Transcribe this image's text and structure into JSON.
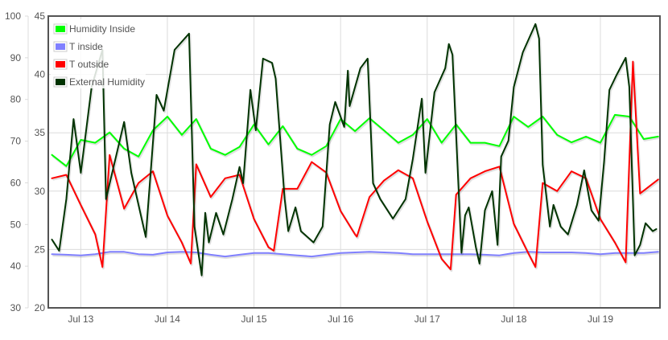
{
  "chart_data": {
    "type": "line",
    "title": "",
    "xlabel": "",
    "ylabel": "",
    "grid": true,
    "legend_position": "top-left",
    "x_range": [
      "07-12 15:00",
      "07-19 16:30"
    ],
    "x_ticks": [
      {
        "label": "Jul 13",
        "at": "07-13 00:00"
      },
      {
        "label": "Jul 14",
        "at": "07-14 00:00"
      },
      {
        "label": "Jul 15",
        "at": "07-15 00:00"
      },
      {
        "label": "Jul 16",
        "at": "07-16 00:00"
      },
      {
        "label": "Jul 17",
        "at": "07-17 00:00"
      },
      {
        "label": "Jul 18",
        "at": "07-18 00:00"
      },
      {
        "label": "Jul 19",
        "at": "07-19 00:00"
      }
    ],
    "y_axes": {
      "humidity": {
        "range": [
          30,
          100
        ],
        "ticks": [
          "30",
          "40",
          "50",
          "60",
          "70",
          "80",
          "90",
          "100"
        ],
        "position": "outer-left"
      },
      "temperature": {
        "range": [
          20,
          45
        ],
        "ticks": [
          "20",
          "25",
          "30",
          "35",
          "40",
          "45"
        ],
        "position": "inner-left"
      }
    },
    "series": [
      {
        "name": "Humidity Inside",
        "color": "#00ff00",
        "axis": "humidity",
        "points": [
          [
            "07-12 16:00",
            66.7
          ],
          [
            "07-12 20:00",
            64.0
          ],
          [
            "07-13 00:00",
            70.3
          ],
          [
            "07-13 04:00",
            69.6
          ],
          [
            "07-13 08:00",
            72.1
          ],
          [
            "07-13 12:00",
            68.2
          ],
          [
            "07-13 16:00",
            66.3
          ],
          [
            "07-13 20:00",
            72.6
          ],
          [
            "07-14 00:00",
            75.9
          ],
          [
            "07-14 04:00",
            71.5
          ],
          [
            "07-14 08:00",
            75.3
          ],
          [
            "07-14 12:00",
            68.2
          ],
          [
            "07-14 16:00",
            66.7
          ],
          [
            "07-14 20:00",
            68.6
          ],
          [
            "07-15 00:00",
            74.0
          ],
          [
            "07-15 04:00",
            69.2
          ],
          [
            "07-15 08:00",
            73.6
          ],
          [
            "07-15 12:00",
            68.2
          ],
          [
            "07-15 16:00",
            66.7
          ],
          [
            "07-15 20:00",
            68.8
          ],
          [
            "07-16 00:00",
            75.3
          ],
          [
            "07-16 04:00",
            72.4
          ],
          [
            "07-16 08:00",
            75.5
          ],
          [
            "07-16 12:00",
            72.6
          ],
          [
            "07-16 16:00",
            69.6
          ],
          [
            "07-16 20:00",
            71.5
          ],
          [
            "07-17 00:00",
            75.3
          ],
          [
            "07-17 04:00",
            69.6
          ],
          [
            "07-17 08:00",
            74.0
          ],
          [
            "07-17 12:00",
            69.6
          ],
          [
            "07-17 16:00",
            69.6
          ],
          [
            "07-17 20:00",
            68.8
          ],
          [
            "07-18 00:00",
            75.9
          ],
          [
            "07-18 04:00",
            73.4
          ],
          [
            "07-18 08:00",
            75.9
          ],
          [
            "07-18 12:00",
            71.5
          ],
          [
            "07-18 16:00",
            69.7
          ],
          [
            "07-18 20:00",
            71.1
          ],
          [
            "07-19 00:00",
            69.6
          ],
          [
            "07-19 04:00",
            76.3
          ],
          [
            "07-19 08:00",
            75.9
          ],
          [
            "07-19 12:00",
            70.5
          ],
          [
            "07-19 16:00",
            71.1
          ]
        ]
      },
      {
        "name": "T inside",
        "color": "#8080ff",
        "axis": "temperature",
        "points": [
          [
            "07-12 16:00",
            24.6
          ],
          [
            "07-12 20:00",
            24.55
          ],
          [
            "07-13 00:00",
            24.5
          ],
          [
            "07-13 04:00",
            24.6
          ],
          [
            "07-13 08:00",
            24.8
          ],
          [
            "07-13 12:00",
            24.8
          ],
          [
            "07-13 16:00",
            24.6
          ],
          [
            "07-13 20:00",
            24.55
          ],
          [
            "07-14 00:00",
            24.75
          ],
          [
            "07-14 04:00",
            24.8
          ],
          [
            "07-14 08:00",
            24.75
          ],
          [
            "07-14 12:00",
            24.55
          ],
          [
            "07-14 16:00",
            24.4
          ],
          [
            "07-14 20:00",
            24.55
          ],
          [
            "07-15 00:00",
            24.7
          ],
          [
            "07-15 04:00",
            24.7
          ],
          [
            "07-15 08:00",
            24.6
          ],
          [
            "07-15 12:00",
            24.5
          ],
          [
            "07-15 16:00",
            24.4
          ],
          [
            "07-15 20:00",
            24.55
          ],
          [
            "07-16 00:00",
            24.7
          ],
          [
            "07-16 04:00",
            24.75
          ],
          [
            "07-16 08:00",
            24.8
          ],
          [
            "07-16 12:00",
            24.75
          ],
          [
            "07-16 16:00",
            24.7
          ],
          [
            "07-16 20:00",
            24.6
          ],
          [
            "07-17 00:00",
            24.6
          ],
          [
            "07-17 04:00",
            24.6
          ],
          [
            "07-17 08:00",
            24.6
          ],
          [
            "07-17 12:00",
            24.6
          ],
          [
            "07-17 16:00",
            24.55
          ],
          [
            "07-17 20:00",
            24.5
          ],
          [
            "07-18 00:00",
            24.7
          ],
          [
            "07-18 04:00",
            24.8
          ],
          [
            "07-18 08:00",
            24.75
          ],
          [
            "07-18 12:00",
            24.75
          ],
          [
            "07-18 16:00",
            24.75
          ],
          [
            "07-18 20:00",
            24.7
          ],
          [
            "07-19 00:00",
            24.6
          ],
          [
            "07-19 04:00",
            24.7
          ],
          [
            "07-19 08:00",
            24.7
          ],
          [
            "07-19 12:00",
            24.7
          ],
          [
            "07-19 16:00",
            24.8
          ]
        ]
      },
      {
        "name": "T outside",
        "color": "#ff0000",
        "axis": "temperature",
        "points": [
          [
            "07-12 16:00",
            31.1
          ],
          [
            "07-12 20:00",
            31.4
          ],
          [
            "07-13 00:00",
            28.8
          ],
          [
            "07-13 04:00",
            26.3
          ],
          [
            "07-13 06:00",
            23.5
          ],
          [
            "07-13 08:00",
            33.1
          ],
          [
            "07-13 12:00",
            28.5
          ],
          [
            "07-13 16:00",
            30.7
          ],
          [
            "07-13 20:00",
            31.7
          ],
          [
            "07-14 00:00",
            27.9
          ],
          [
            "07-14 04:00",
            25.6
          ],
          [
            "07-14 06:30",
            23.8
          ],
          [
            "07-14 08:00",
            32.3
          ],
          [
            "07-14 12:00",
            29.5
          ],
          [
            "07-14 16:00",
            31.1
          ],
          [
            "07-14 20:00",
            31.4
          ],
          [
            "07-15 00:00",
            27.6
          ],
          [
            "07-15 04:00",
            25.2
          ],
          [
            "07-15 05:30",
            24.9
          ],
          [
            "07-15 08:00",
            30.2
          ],
          [
            "07-15 12:00",
            30.2
          ],
          [
            "07-15 16:00",
            32.5
          ],
          [
            "07-15 20:00",
            31.6
          ],
          [
            "07-16 00:00",
            28.3
          ],
          [
            "07-16 04:00",
            26.3
          ],
          [
            "07-16 04:30",
            26.1
          ],
          [
            "07-16 08:00",
            29.5
          ],
          [
            "07-16 12:00",
            30.9
          ],
          [
            "07-16 16:00",
            31.8
          ],
          [
            "07-16 20:00",
            31.1
          ],
          [
            "07-17 00:00",
            27.4
          ],
          [
            "07-17 04:00",
            24.2
          ],
          [
            "07-17 06:30",
            23.3
          ],
          [
            "07-17 08:00",
            29.7
          ],
          [
            "07-17 12:00",
            31.1
          ],
          [
            "07-17 16:00",
            31.7
          ],
          [
            "07-17 20:00",
            32.1
          ],
          [
            "07-18 00:00",
            27.2
          ],
          [
            "07-18 04:00",
            24.7
          ],
          [
            "07-18 06:00",
            23.5
          ],
          [
            "07-18 08:00",
            30.7
          ],
          [
            "07-18 12:00",
            30.0
          ],
          [
            "07-18 16:00",
            31.7
          ],
          [
            "07-18 20:00",
            31.1
          ],
          [
            "07-19 00:00",
            27.6
          ],
          [
            "07-19 04:00",
            25.6
          ],
          [
            "07-19 07:00",
            23.9
          ],
          [
            "07-19 09:00",
            41.1
          ],
          [
            "07-19 11:00",
            29.8
          ],
          [
            "07-19 16:00",
            31.0
          ]
        ]
      },
      {
        "name": "External Humidity",
        "color": "#003300",
        "axis": "humidity",
        "points": [
          [
            "07-12 16:00",
            46.4
          ],
          [
            "07-12 18:00",
            43.7
          ],
          [
            "07-12 20:00",
            56.1
          ],
          [
            "07-12 22:00",
            75.3
          ],
          [
            "07-13 00:00",
            62.4
          ],
          [
            "07-13 03:00",
            83.0
          ],
          [
            "07-13 06:00",
            91.9
          ],
          [
            "07-13 07:00",
            56.1
          ],
          [
            "07-13 12:00",
            74.6
          ],
          [
            "07-13 14:00",
            62.4
          ],
          [
            "07-13 18:00",
            47.0
          ],
          [
            "07-13 21:00",
            81.1
          ],
          [
            "07-13 23:00",
            77.3
          ],
          [
            "07-14 02:00",
            91.9
          ],
          [
            "07-14 06:00",
            95.8
          ],
          [
            "07-14 07:30",
            49.5
          ],
          [
            "07-14 09:30",
            37.8
          ],
          [
            "07-14 10:30",
            52.8
          ],
          [
            "07-14 11:30",
            45.7
          ],
          [
            "07-14 13:30",
            52.8
          ],
          [
            "07-14 15:30",
            47.6
          ],
          [
            "07-14 18:00",
            56.1
          ],
          [
            "07-14 20:00",
            63.8
          ],
          [
            "07-14 21:00",
            59.9
          ],
          [
            "07-14 23:00",
            82.3
          ],
          [
            "07-15 00:30",
            72.6
          ],
          [
            "07-15 02:30",
            89.8
          ],
          [
            "07-15 05:00",
            88.8
          ],
          [
            "07-15 06:00",
            85.0
          ],
          [
            "07-15 08:30",
            56.1
          ],
          [
            "07-15 09:30",
            48.4
          ],
          [
            "07-15 11:30",
            54.1
          ],
          [
            "07-15 13:00",
            48.4
          ],
          [
            "07-15 16:30",
            45.7
          ],
          [
            "07-15 19:00",
            49.5
          ],
          [
            "07-15 21:00",
            74.0
          ],
          [
            "07-15 22:30",
            79.4
          ],
          [
            "07-16 01:00",
            73.4
          ],
          [
            "07-16 02:00",
            86.9
          ],
          [
            "07-16 02:30",
            78.4
          ],
          [
            "07-16 05:30",
            87.5
          ],
          [
            "07-16 07:30",
            89.8
          ],
          [
            "07-16 09:00",
            59.9
          ],
          [
            "07-16 11:00",
            56.1
          ],
          [
            "07-16 14:30",
            51.4
          ],
          [
            "07-16 18:00",
            56.1
          ],
          [
            "07-16 20:00",
            65.7
          ],
          [
            "07-16 22:30",
            80.2
          ],
          [
            "07-16 23:30",
            62.4
          ],
          [
            "07-17 02:00",
            81.7
          ],
          [
            "07-17 05:00",
            87.5
          ],
          [
            "07-17 06:00",
            93.3
          ],
          [
            "07-17 07:00",
            90.7
          ],
          [
            "07-17 09:30",
            43.2
          ],
          [
            "07-17 10:30",
            52.2
          ],
          [
            "07-17 11:30",
            54.1
          ],
          [
            "07-17 13:30",
            44.5
          ],
          [
            "07-17 14:30",
            40.6
          ],
          [
            "07-17 16:00",
            53.4
          ],
          [
            "07-17 18:00",
            58.0
          ],
          [
            "07-17 19:30",
            45.1
          ],
          [
            "07-17 20:30",
            66.3
          ],
          [
            "07-17 22:30",
            70.1
          ],
          [
            "07-18 00:00",
            83.0
          ],
          [
            "07-18 02:30",
            91.3
          ],
          [
            "07-18 06:00",
            98.1
          ],
          [
            "07-18 07:00",
            94.6
          ],
          [
            "07-18 08:00",
            64.3
          ],
          [
            "07-18 10:00",
            49.5
          ],
          [
            "07-18 11:00",
            54.7
          ],
          [
            "07-18 13:00",
            49.5
          ],
          [
            "07-18 15:00",
            47.6
          ],
          [
            "07-18 17:30",
            54.7
          ],
          [
            "07-18 19:30",
            63.0
          ],
          [
            "07-18 21:30",
            53.4
          ],
          [
            "07-18 23:30",
            50.9
          ],
          [
            "07-19 01:00",
            64.9
          ],
          [
            "07-19 02:30",
            82.3
          ],
          [
            "07-19 04:30",
            85.9
          ],
          [
            "07-19 07:00",
            90.0
          ],
          [
            "07-19 08:00",
            83.0
          ],
          [
            "07-19 09:30",
            42.6
          ],
          [
            "07-19 11:00",
            45.1
          ],
          [
            "07-19 12:30",
            50.3
          ],
          [
            "07-19 14:30",
            48.4
          ],
          [
            "07-19 15:30",
            48.9
          ]
        ]
      }
    ]
  }
}
